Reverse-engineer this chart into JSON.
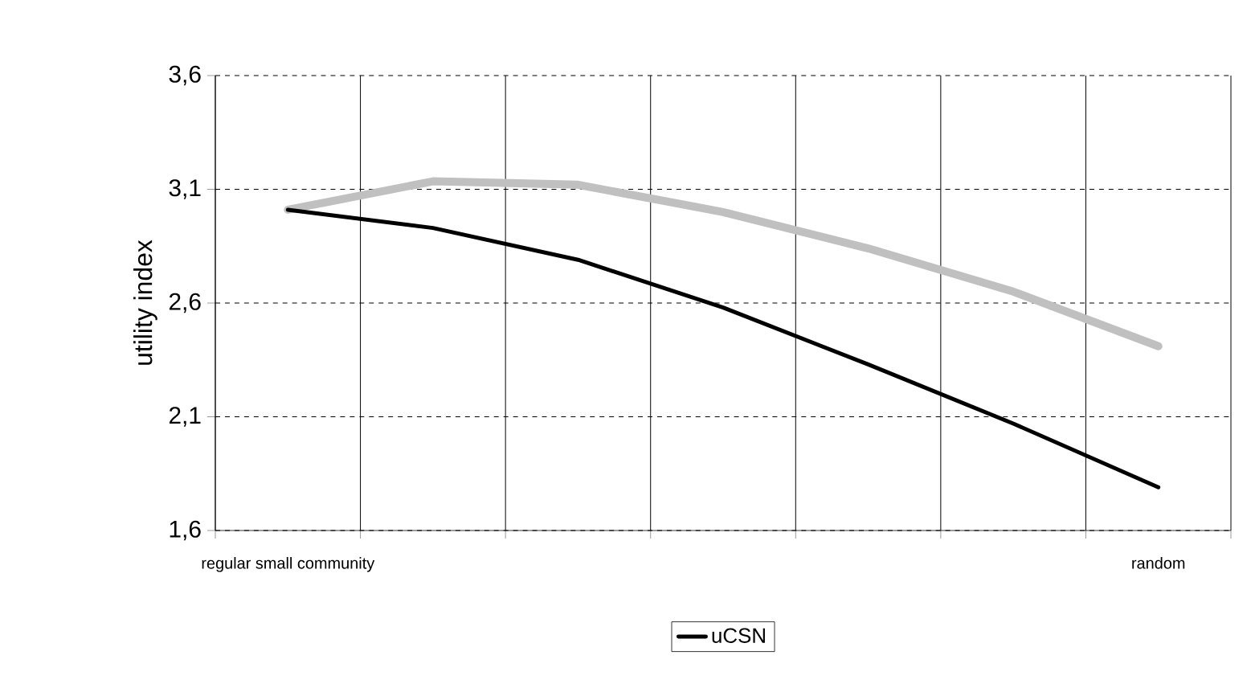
{
  "chart_data": {
    "type": "line",
    "ylabel": "utility index",
    "categories": [
      "regular small community",
      null,
      null,
      null,
      null,
      null,
      "random"
    ],
    "series": [
      {
        "color": "#c0c0c0",
        "values": [
          3.01,
          3.135,
          3.12,
          3.0,
          2.84,
          2.65,
          2.41
        ]
      },
      {
        "name": "uCSN",
        "color": "#000000",
        "values": [
          3.01,
          2.93,
          2.79,
          2.58,
          2.33,
          2.07,
          1.79
        ]
      }
    ],
    "ylim": [
      1.6,
      3.6
    ],
    "yticks": [
      {
        "value": 1.6,
        "label": "1,6"
      },
      {
        "value": 2.1,
        "label": "2,1"
      },
      {
        "value": 2.6,
        "label": "2,6"
      },
      {
        "value": 3.1,
        "label": "3,1"
      },
      {
        "value": 3.6,
        "label": "3,6"
      }
    ],
    "grid": true,
    "legend": "bottom",
    "marker": "none",
    "line_style": "solid"
  }
}
